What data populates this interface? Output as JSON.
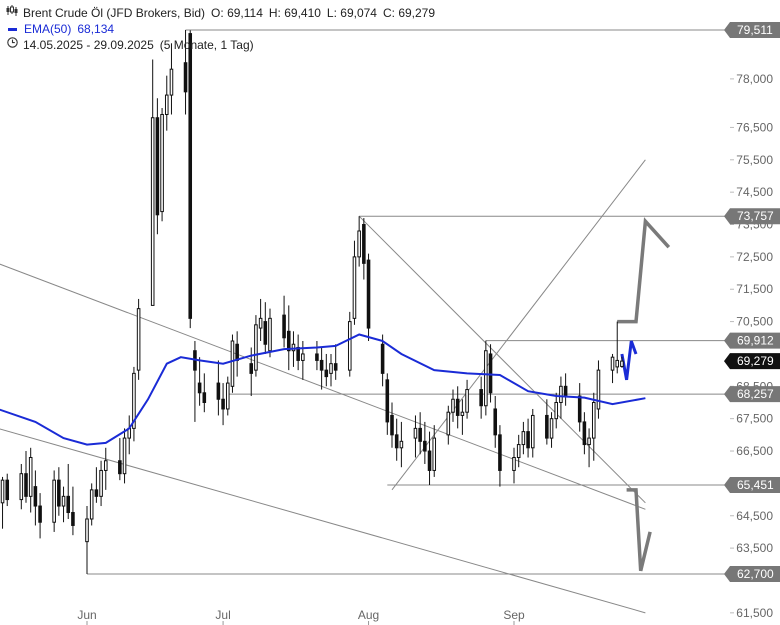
{
  "header": {
    "instrument": "Brent Crude Öl (JFD Brokers, Bid)",
    "open_label": "O:",
    "open": "69,114",
    "high_label": "H:",
    "high": "69,410",
    "low_label": "L:",
    "low": "69,074",
    "close_label": "C:",
    "close": "69,279",
    "ema_label": "EMA(50)",
    "ema_value": "68,134",
    "date_range": "14.05.2025 - 29.09.2025",
    "period": "(5 Monate, 1 Tag)"
  },
  "colors": {
    "ema": "#1a2bd6",
    "forecast": "#1a2bd6",
    "line": "#888888",
    "candle": "#111111",
    "tag": "#777777",
    "tag_current": "#111111"
  },
  "chart_data": {
    "type": "candlestick",
    "x_range": [
      "2025-05-14",
      "2025-09-29"
    ],
    "ylim": [
      61500,
      79700
    ],
    "x_ticks": [
      {
        "date": "2025-06-02",
        "label": "Jun"
      },
      {
        "date": "2025-07-01",
        "label": "Jul"
      },
      {
        "date": "2025-08-01",
        "label": "Aug"
      },
      {
        "date": "2025-09-01",
        "label": "Sep"
      }
    ],
    "y_ticks": [
      {
        "value": 61500,
        "label": "61,500"
      },
      {
        "value": 63500,
        "label": "63,500"
      },
      {
        "value": 64500,
        "label": "64,500"
      },
      {
        "value": 66500,
        "label": "66,500"
      },
      {
        "value": 67500,
        "label": "67,500"
      },
      {
        "value": 68500,
        "label": "68,500"
      },
      {
        "value": 70500,
        "label": "70,500"
      },
      {
        "value": 71500,
        "label": "71,500"
      },
      {
        "value": 72500,
        "label": "72,500"
      },
      {
        "value": 73500,
        "label": "73,500"
      },
      {
        "value": 74500,
        "label": "74,500"
      },
      {
        "value": 75500,
        "label": "75,500"
      },
      {
        "value": 76500,
        "label": "76,500"
      },
      {
        "value": 78000,
        "label": "78,000"
      }
    ],
    "price_tags": [
      {
        "value": 79511,
        "label": "79,511",
        "kind": "level"
      },
      {
        "value": 73757,
        "label": "73,757",
        "kind": "level"
      },
      {
        "value": 69912,
        "label": "69,912",
        "kind": "level"
      },
      {
        "value": 69279,
        "label": "69,279",
        "kind": "current"
      },
      {
        "value": 68257,
        "label": "68,257",
        "kind": "level"
      },
      {
        "value": 65451,
        "label": "65,451",
        "kind": "level"
      },
      {
        "value": 62700,
        "label": "62,700",
        "kind": "level"
      }
    ],
    "levels": [
      {
        "value": 79511,
        "from": "2025-06-23"
      },
      {
        "value": 73757,
        "from": "2025-07-30"
      },
      {
        "value": 69912,
        "from": "2025-08-26"
      },
      {
        "value": 68257,
        "from": "2025-07-02"
      },
      {
        "value": 65451,
        "from": "2025-08-05"
      },
      {
        "value": 62700,
        "from": "2025-06-02"
      }
    ],
    "trendlines": [
      {
        "from": {
          "date": "2025-05-14",
          "value": 72300
        },
        "to": {
          "date": "2025-09-29",
          "value": 64700
        }
      },
      {
        "from": {
          "date": "2025-05-14",
          "value": 67200
        },
        "to": {
          "date": "2025-09-29",
          "value": 61500
        }
      },
      {
        "from": {
          "date": "2025-07-30",
          "value": 73757
        },
        "to": {
          "date": "2025-09-29",
          "value": 64900
        }
      },
      {
        "from": {
          "date": "2025-08-06",
          "value": 65300
        },
        "to": {
          "date": "2025-09-29",
          "value": 75500
        }
      }
    ],
    "scenarios": {
      "bullish": [
        {
          "date": "2025-09-23",
          "value": 70500
        },
        {
          "date": "2025-09-27",
          "value": 70500
        },
        {
          "date": "2025-09-29",
          "value": 73600
        },
        {
          "date": "2025-10-04",
          "value": 72800
        }
      ],
      "bearish": [
        {
          "date": "2025-09-25",
          "value": 65300
        },
        {
          "date": "2025-09-27",
          "value": 65300
        },
        {
          "date": "2025-09-28",
          "value": 62800
        },
        {
          "date": "2025-09-30",
          "value": 64000
        }
      ],
      "near_term": [
        {
          "date": "2025-09-24",
          "value": 69500
        },
        {
          "date": "2025-09-25",
          "value": 68700
        },
        {
          "date": "2025-09-26",
          "value": 69900
        },
        {
          "date": "2025-09-27",
          "value": 69500
        }
      ]
    },
    "ema": [
      {
        "date": "2025-05-14",
        "value": 67800
      },
      {
        "date": "2025-05-22",
        "value": 67400
      },
      {
        "date": "2025-05-28",
        "value": 66900
      },
      {
        "date": "2025-06-02",
        "value": 66700
      },
      {
        "date": "2025-06-06",
        "value": 66750
      },
      {
        "date": "2025-06-11",
        "value": 67200
      },
      {
        "date": "2025-06-15",
        "value": 68100
      },
      {
        "date": "2025-06-19",
        "value": 69200
      },
      {
        "date": "2025-06-22",
        "value": 69400
      },
      {
        "date": "2025-06-26",
        "value": 69300
      },
      {
        "date": "2025-07-01",
        "value": 69200
      },
      {
        "date": "2025-07-07",
        "value": 69450
      },
      {
        "date": "2025-07-14",
        "value": 69650
      },
      {
        "date": "2025-07-21",
        "value": 69700
      },
      {
        "date": "2025-07-25",
        "value": 69750
      },
      {
        "date": "2025-07-30",
        "value": 70100
      },
      {
        "date": "2025-08-04",
        "value": 69900
      },
      {
        "date": "2025-08-08",
        "value": 69500
      },
      {
        "date": "2025-08-15",
        "value": 69000
      },
      {
        "date": "2025-08-22",
        "value": 68900
      },
      {
        "date": "2025-08-29",
        "value": 68850
      },
      {
        "date": "2025-09-04",
        "value": 68350
      },
      {
        "date": "2025-09-10",
        "value": 68200
      },
      {
        "date": "2025-09-16",
        "value": 68150
      },
      {
        "date": "2025-09-22",
        "value": 67950
      },
      {
        "date": "2025-09-29",
        "value": 68134
      }
    ],
    "ohlc": [
      {
        "date": "2025-05-14",
        "o": 66300,
        "h": 66600,
        "l": 65400,
        "c": 65800
      },
      {
        "date": "2025-05-15",
        "o": 64900,
        "h": 65700,
        "l": 64100,
        "c": 65600
      },
      {
        "date": "2025-05-16",
        "o": 65600,
        "h": 65800,
        "l": 64800,
        "c": 65000
      },
      {
        "date": "2025-05-19",
        "o": 65000,
        "h": 66100,
        "l": 64700,
        "c": 65800
      },
      {
        "date": "2025-05-20",
        "o": 65800,
        "h": 66500,
        "l": 64900,
        "c": 65100
      },
      {
        "date": "2025-05-21",
        "o": 65100,
        "h": 66600,
        "l": 64600,
        "c": 66300
      },
      {
        "date": "2025-05-22",
        "o": 65400,
        "h": 65900,
        "l": 64200,
        "c": 64800
      },
      {
        "date": "2025-05-23",
        "o": 64800,
        "h": 65200,
        "l": 63800,
        "c": 64300
      },
      {
        "date": "2025-05-26",
        "o": 64300,
        "h": 65900,
        "l": 64000,
        "c": 65600
      },
      {
        "date": "2025-05-27",
        "o": 65600,
        "h": 66000,
        "l": 64500,
        "c": 64800
      },
      {
        "date": "2025-05-28",
        "o": 64800,
        "h": 65400,
        "l": 64300,
        "c": 65100
      },
      {
        "date": "2025-05-29",
        "o": 65100,
        "h": 66100,
        "l": 64400,
        "c": 64600
      },
      {
        "date": "2025-05-30",
        "o": 64600,
        "h": 65400,
        "l": 63900,
        "c": 64200
      },
      {
        "date": "2025-06-02",
        "o": 63700,
        "h": 64800,
        "l": 62700,
        "c": 64400
      },
      {
        "date": "2025-06-03",
        "o": 64400,
        "h": 65500,
        "l": 64200,
        "c": 65300
      },
      {
        "date": "2025-06-04",
        "o": 65300,
        "h": 66000,
        "l": 64900,
        "c": 65100
      },
      {
        "date": "2025-06-05",
        "o": 65100,
        "h": 66200,
        "l": 64800,
        "c": 65900
      },
      {
        "date": "2025-06-06",
        "o": 65900,
        "h": 66600,
        "l": 65300,
        "c": 66200
      },
      {
        "date": "2025-06-09",
        "o": 66200,
        "h": 66900,
        "l": 65600,
        "c": 65800
      },
      {
        "date": "2025-06-10",
        "o": 65800,
        "h": 67200,
        "l": 65500,
        "c": 66900
      },
      {
        "date": "2025-06-11",
        "o": 66900,
        "h": 67600,
        "l": 66400,
        "c": 67200
      },
      {
        "date": "2025-06-12",
        "o": 67200,
        "h": 69100,
        "l": 66800,
        "c": 68900
      },
      {
        "date": "2025-06-13",
        "o": 69000,
        "h": 71200,
        "l": 68700,
        "c": 70900
      },
      {
        "date": "2025-06-16",
        "o": 71000,
        "h": 78600,
        "l": 71000,
        "c": 76800
      },
      {
        "date": "2025-06-17",
        "o": 76800,
        "h": 77400,
        "l": 73200,
        "c": 73800
      },
      {
        "date": "2025-06-18",
        "o": 73900,
        "h": 77100,
        "l": 73600,
        "c": 76900
      },
      {
        "date": "2025-06-19",
        "o": 76900,
        "h": 78100,
        "l": 76400,
        "c": 77500
      },
      {
        "date": "2025-06-20",
        "o": 77500,
        "h": 79100,
        "l": 76900,
        "c": 78300
      },
      {
        "date": "2025-06-23",
        "o": 78500,
        "h": 79511,
        "l": 76900,
        "c": 77600
      },
      {
        "date": "2025-06-24",
        "o": 79400,
        "h": 79500,
        "l": 70300,
        "c": 70600
      },
      {
        "date": "2025-06-25",
        "o": 69600,
        "h": 69900,
        "l": 67400,
        "c": 69000
      },
      {
        "date": "2025-06-26",
        "o": 68600,
        "h": 69400,
        "l": 67900,
        "c": 68300
      },
      {
        "date": "2025-06-27",
        "o": 68300,
        "h": 68900,
        "l": 67700,
        "c": 68000
      },
      {
        "date": "2025-06-30",
        "o": 68600,
        "h": 69300,
        "l": 67600,
        "c": 68100
      },
      {
        "date": "2025-07-01",
        "o": 68100,
        "h": 68600,
        "l": 67300,
        "c": 67800
      },
      {
        "date": "2025-07-02",
        "o": 67800,
        "h": 68800,
        "l": 67600,
        "c": 68600
      },
      {
        "date": "2025-07-03",
        "o": 68500,
        "h": 70100,
        "l": 68300,
        "c": 69900
      },
      {
        "date": "2025-07-04",
        "o": 69800,
        "h": 70200,
        "l": 68800,
        "c": 69300
      },
      {
        "date": "2025-07-07",
        "o": 69200,
        "h": 69700,
        "l": 68200,
        "c": 68900
      },
      {
        "date": "2025-07-08",
        "o": 69000,
        "h": 70700,
        "l": 68800,
        "c": 70400
      },
      {
        "date": "2025-07-09",
        "o": 70300,
        "h": 71200,
        "l": 69900,
        "c": 70600
      },
      {
        "date": "2025-07-10",
        "o": 70500,
        "h": 71100,
        "l": 69500,
        "c": 69800
      },
      {
        "date": "2025-07-11",
        "o": 69600,
        "h": 70900,
        "l": 69400,
        "c": 70600
      },
      {
        "date": "2025-07-14",
        "o": 70700,
        "h": 71300,
        "l": 69700,
        "c": 70000
      },
      {
        "date": "2025-07-15",
        "o": 70200,
        "h": 71000,
        "l": 69000,
        "c": 69600
      },
      {
        "date": "2025-07-16",
        "o": 69600,
        "h": 70200,
        "l": 69100,
        "c": 69800
      },
      {
        "date": "2025-07-17",
        "o": 69700,
        "h": 70100,
        "l": 69000,
        "c": 69300
      },
      {
        "date": "2025-07-18",
        "o": 69300,
        "h": 69900,
        "l": 68700,
        "c": 69500
      },
      {
        "date": "2025-07-21",
        "o": 69500,
        "h": 69900,
        "l": 69000,
        "c": 69300
      },
      {
        "date": "2025-07-22",
        "o": 69300,
        "h": 69700,
        "l": 68400,
        "c": 69000
      },
      {
        "date": "2025-07-23",
        "o": 69000,
        "h": 69500,
        "l": 68500,
        "c": 68800
      },
      {
        "date": "2025-07-24",
        "o": 68900,
        "h": 69500,
        "l": 68500,
        "c": 69200
      },
      {
        "date": "2025-07-25",
        "o": 69200,
        "h": 69800,
        "l": 68700,
        "c": 69000
      },
      {
        "date": "2025-07-28",
        "o": 69000,
        "h": 70800,
        "l": 68800,
        "c": 70500
      },
      {
        "date": "2025-07-29",
        "o": 70600,
        "h": 73000,
        "l": 70400,
        "c": 72500
      },
      {
        "date": "2025-07-30",
        "o": 72500,
        "h": 73757,
        "l": 72200,
        "c": 73300
      },
      {
        "date": "2025-07-31",
        "o": 73500,
        "h": 73700,
        "l": 71800,
        "c": 72300
      },
      {
        "date": "2025-08-01",
        "o": 72400,
        "h": 72600,
        "l": 69900,
        "c": 70300
      },
      {
        "date": "2025-08-04",
        "o": 69800,
        "h": 70100,
        "l": 68500,
        "c": 68900
      },
      {
        "date": "2025-08-05",
        "o": 68700,
        "h": 68900,
        "l": 67000,
        "c": 67400
      },
      {
        "date": "2025-08-06",
        "o": 67600,
        "h": 68000,
        "l": 66600,
        "c": 67000
      },
      {
        "date": "2025-08-07",
        "o": 67000,
        "h": 67500,
        "l": 66200,
        "c": 66600
      },
      {
        "date": "2025-08-08",
        "o": 66600,
        "h": 67400,
        "l": 66000,
        "c": 66800
      },
      {
        "date": "2025-08-11",
        "o": 66900,
        "h": 67600,
        "l": 66300,
        "c": 67200
      },
      {
        "date": "2025-08-12",
        "o": 67200,
        "h": 67700,
        "l": 66400,
        "c": 66800
      },
      {
        "date": "2025-08-13",
        "o": 66800,
        "h": 67400,
        "l": 66100,
        "c": 66500
      },
      {
        "date": "2025-08-14",
        "o": 66500,
        "h": 67100,
        "l": 65451,
        "c": 65900
      },
      {
        "date": "2025-08-15",
        "o": 65900,
        "h": 67300,
        "l": 65700,
        "c": 66900
      },
      {
        "date": "2025-08-18",
        "o": 67000,
        "h": 67900,
        "l": 66700,
        "c": 67700
      },
      {
        "date": "2025-08-19",
        "o": 67700,
        "h": 68400,
        "l": 67400,
        "c": 68100
      },
      {
        "date": "2025-08-20",
        "o": 68100,
        "h": 68500,
        "l": 67200,
        "c": 67600
      },
      {
        "date": "2025-08-21",
        "o": 67600,
        "h": 68100,
        "l": 67000,
        "c": 67700
      },
      {
        "date": "2025-08-22",
        "o": 67700,
        "h": 68700,
        "l": 67500,
        "c": 68400
      },
      {
        "date": "2025-08-25",
        "o": 68400,
        "h": 68800,
        "l": 67500,
        "c": 67900
      },
      {
        "date": "2025-08-26",
        "o": 67900,
        "h": 69912,
        "l": 67600,
        "c": 69600
      },
      {
        "date": "2025-08-27",
        "o": 69500,
        "h": 69800,
        "l": 68000,
        "c": 68300
      },
      {
        "date": "2025-08-28",
        "o": 67800,
        "h": 68200,
        "l": 66600,
        "c": 67000
      },
      {
        "date": "2025-08-29",
        "o": 67000,
        "h": 67300,
        "l": 65400,
        "c": 65900
      },
      {
        "date": "2025-09-01",
        "o": 65900,
        "h": 66600,
        "l": 65500,
        "c": 66300
      },
      {
        "date": "2025-09-02",
        "o": 66300,
        "h": 67000,
        "l": 66000,
        "c": 66700
      },
      {
        "date": "2025-09-03",
        "o": 66700,
        "h": 67400,
        "l": 66400,
        "c": 67100
      },
      {
        "date": "2025-09-04",
        "o": 67100,
        "h": 67500,
        "l": 66300,
        "c": 66600
      },
      {
        "date": "2025-09-05",
        "o": 66600,
        "h": 67800,
        "l": 66300,
        "c": 67600
      },
      {
        "date": "2025-09-08",
        "o": 67600,
        "h": 68100,
        "l": 66700,
        "c": 66900
      },
      {
        "date": "2025-09-09",
        "o": 66900,
        "h": 67700,
        "l": 66600,
        "c": 67500
      },
      {
        "date": "2025-09-10",
        "o": 67500,
        "h": 68300,
        "l": 67200,
        "c": 68000
      },
      {
        "date": "2025-09-11",
        "o": 68000,
        "h": 68800,
        "l": 67500,
        "c": 68500
      },
      {
        "date": "2025-09-12",
        "o": 68500,
        "h": 68900,
        "l": 67900,
        "c": 68200
      },
      {
        "date": "2025-09-15",
        "o": 68200,
        "h": 68600,
        "l": 67100,
        "c": 67400
      },
      {
        "date": "2025-09-16",
        "o": 67400,
        "h": 67700,
        "l": 66400,
        "c": 66700
      },
      {
        "date": "2025-09-17",
        "o": 66700,
        "h": 67200,
        "l": 66000,
        "c": 66900
      },
      {
        "date": "2025-09-18",
        "o": 66900,
        "h": 68300,
        "l": 66200,
        "c": 68000
      },
      {
        "date": "2025-09-19",
        "o": 67800,
        "h": 69300,
        "l": 67500,
        "c": 69000
      },
      {
        "date": "2025-09-22",
        "o": 69000,
        "h": 69500,
        "l": 68600,
        "c": 69400
      },
      {
        "date": "2025-09-23",
        "o": 69100,
        "h": 70500,
        "l": 68900,
        "c": 69300
      },
      {
        "date": "2025-09-24",
        "o": 69114,
        "h": 69410,
        "l": 69074,
        "c": 69279
      }
    ]
  }
}
